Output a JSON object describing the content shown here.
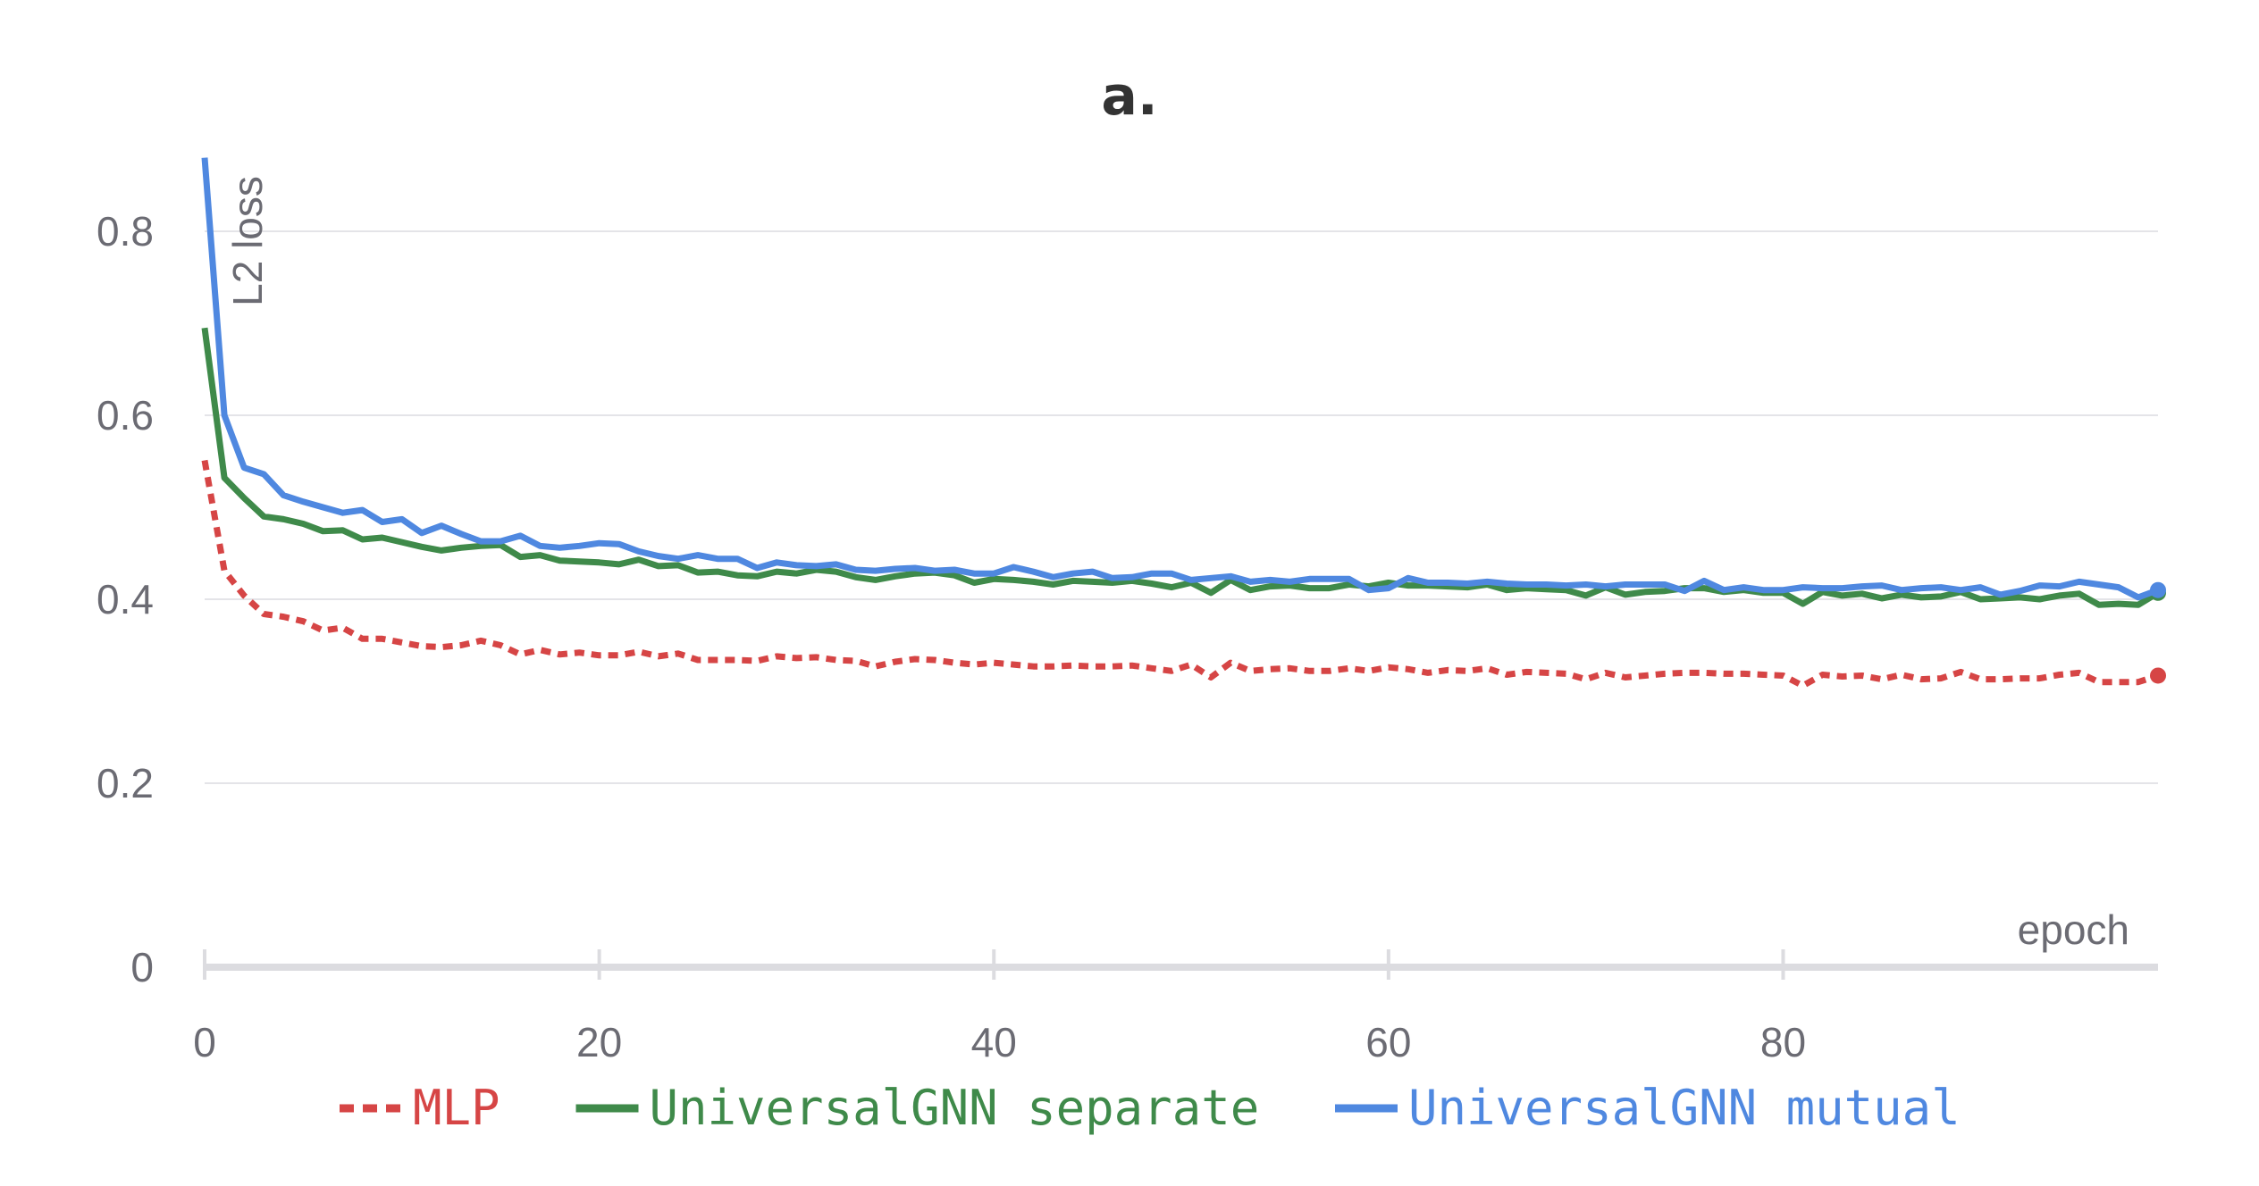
{
  "chart_data": {
    "type": "line",
    "title": "a.",
    "xlabel": "epoch",
    "ylabel": "L2 loss",
    "xlim": [
      0,
      99
    ],
    "ylim": [
      0,
      0.88
    ],
    "x_ticks": [
      "0",
      "20",
      "40",
      "60",
      "80"
    ],
    "x_tick_values": [
      0,
      20,
      40,
      60,
      80
    ],
    "y_ticks": [
      "0",
      "0.2",
      "0.4",
      "0.6",
      "0.8"
    ],
    "y_tick_values": [
      0,
      0.2,
      0.4,
      0.6,
      0.8
    ],
    "grid": "horizontal",
    "legend_position": "bottom",
    "series": [
      {
        "name": "MLP",
        "color": "#d64545",
        "dash": "dashed",
        "end_marker": true,
        "values": [
          0.551,
          0.431,
          0.404,
          0.384,
          0.381,
          0.376,
          0.366,
          0.369,
          0.357,
          0.357,
          0.353,
          0.349,
          0.348,
          0.35,
          0.355,
          0.35,
          0.34,
          0.345,
          0.34,
          0.342,
          0.339,
          0.339,
          0.343,
          0.338,
          0.341,
          0.334,
          0.334,
          0.334,
          0.333,
          0.338,
          0.336,
          0.337,
          0.334,
          0.333,
          0.327,
          0.332,
          0.335,
          0.334,
          0.331,
          0.329,
          0.331,
          0.329,
          0.327,
          0.327,
          0.328,
          0.327,
          0.327,
          0.328,
          0.325,
          0.322,
          0.329,
          0.315,
          0.331,
          0.322,
          0.324,
          0.325,
          0.322,
          0.322,
          0.325,
          0.322,
          0.326,
          0.324,
          0.32,
          0.323,
          0.322,
          0.325,
          0.318,
          0.321,
          0.32,
          0.319,
          0.313,
          0.32,
          0.315,
          0.317,
          0.319,
          0.32,
          0.32,
          0.319,
          0.319,
          0.318,
          0.317,
          0.306,
          0.318,
          0.316,
          0.317,
          0.313,
          0.318,
          0.313,
          0.314,
          0.321,
          0.313,
          0.313,
          0.314,
          0.314,
          0.318,
          0.32,
          0.31,
          0.31,
          0.31,
          0.317
        ]
      },
      {
        "name": "UniversalGNN separate",
        "color": "#3f8a4a",
        "dash": "solid",
        "end_marker": true,
        "values": [
          0.695,
          0.532,
          0.51,
          0.49,
          0.487,
          0.482,
          0.474,
          0.475,
          0.465,
          0.467,
          0.462,
          0.457,
          0.453,
          0.456,
          0.458,
          0.459,
          0.446,
          0.448,
          0.442,
          0.441,
          0.44,
          0.438,
          0.443,
          0.436,
          0.437,
          0.429,
          0.43,
          0.426,
          0.425,
          0.43,
          0.428,
          0.432,
          0.43,
          0.424,
          0.421,
          0.425,
          0.428,
          0.429,
          0.426,
          0.418,
          0.422,
          0.421,
          0.419,
          0.416,
          0.42,
          0.419,
          0.418,
          0.42,
          0.417,
          0.413,
          0.418,
          0.407,
          0.421,
          0.41,
          0.414,
          0.415,
          0.412,
          0.412,
          0.416,
          0.414,
          0.418,
          0.415,
          0.415,
          0.414,
          0.413,
          0.416,
          0.41,
          0.412,
          0.411,
          0.41,
          0.404,
          0.413,
          0.405,
          0.408,
          0.409,
          0.412,
          0.412,
          0.408,
          0.41,
          0.407,
          0.407,
          0.395,
          0.408,
          0.404,
          0.406,
          0.401,
          0.405,
          0.402,
          0.403,
          0.408,
          0.4,
          0.401,
          0.402,
          0.4,
          0.404,
          0.406,
          0.394,
          0.395,
          0.394,
          0.407
        ]
      },
      {
        "name": "UniversalGNN mutual",
        "color": "#4f88e0",
        "dash": "solid",
        "end_marker": true,
        "values": [
          0.88,
          0.6,
          0.543,
          0.536,
          0.513,
          0.506,
          0.5,
          0.494,
          0.497,
          0.484,
          0.487,
          0.472,
          0.48,
          0.471,
          0.463,
          0.463,
          0.469,
          0.458,
          0.456,
          0.458,
          0.461,
          0.46,
          0.452,
          0.447,
          0.444,
          0.448,
          0.444,
          0.444,
          0.434,
          0.44,
          0.437,
          0.436,
          0.438,
          0.432,
          0.431,
          0.433,
          0.434,
          0.431,
          0.432,
          0.428,
          0.428,
          0.435,
          0.43,
          0.424,
          0.428,
          0.43,
          0.423,
          0.424,
          0.428,
          0.428,
          0.421,
          0.423,
          0.425,
          0.419,
          0.421,
          0.419,
          0.422,
          0.422,
          0.422,
          0.41,
          0.412,
          0.423,
          0.418,
          0.418,
          0.417,
          0.419,
          0.417,
          0.416,
          0.416,
          0.415,
          0.416,
          0.414,
          0.416,
          0.416,
          0.416,
          0.409,
          0.42,
          0.41,
          0.413,
          0.41,
          0.41,
          0.413,
          0.412,
          0.412,
          0.414,
          0.415,
          0.41,
          0.412,
          0.413,
          0.41,
          0.413,
          0.405,
          0.409,
          0.415,
          0.414,
          0.419,
          0.416,
          0.413,
          0.402,
          0.41
        ]
      }
    ]
  }
}
